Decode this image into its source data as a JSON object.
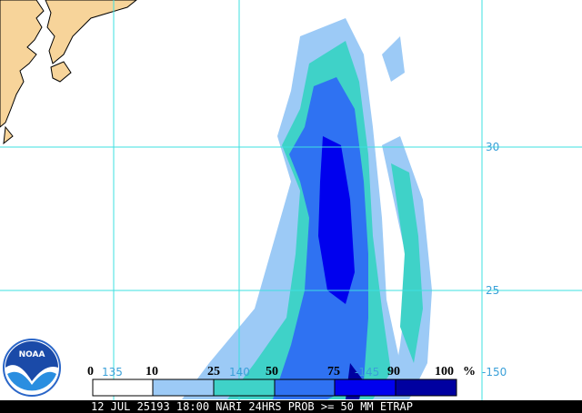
{
  "map": {
    "latitude_labels": [
      "30",
      "25"
    ],
    "longitude_labels": [
      "135",
      "140",
      "-145",
      "-150"
    ],
    "legend": {
      "labels": [
        "0",
        "10",
        "25",
        "50",
        "75",
        "90",
        "100"
      ],
      "unit": "%"
    },
    "logo": "NOAA",
    "footer": "12 JUL 25193 18:00 NARI 24HRS PROB >= 50 MM ETRAP"
  }
}
